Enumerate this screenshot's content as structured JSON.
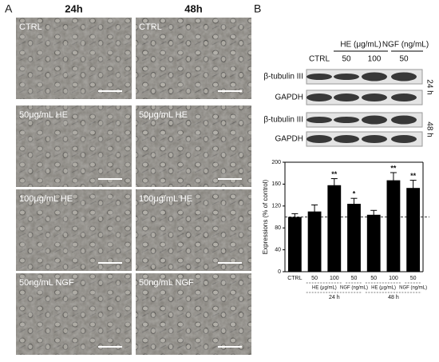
{
  "panel_a": {
    "label": "A",
    "columns": [
      "24h",
      "48h"
    ],
    "rows": [
      "CTRL",
      "50μg/mL HE",
      "100μg/mL HE",
      "50ng/mL NGF"
    ]
  },
  "panel_b": {
    "label": "B",
    "blot": {
      "treatments": [
        "HE (μg/mL)",
        "NGF (ng/mL)"
      ],
      "lanes": [
        "CTRL",
        "50",
        "100",
        "50"
      ],
      "proteins": [
        "β-tubulin III",
        "GAPDH",
        "β-tubulin III",
        "GAPDH"
      ],
      "times": [
        "24 h",
        "48 h"
      ]
    }
  },
  "chart_data": {
    "type": "bar",
    "ylabel": "Expressions (% of control)",
    "categories": [
      "CTRL",
      "50",
      "100",
      "50",
      "50",
      "100",
      "50"
    ],
    "values": [
      100,
      110,
      158,
      124,
      104,
      167,
      153
    ],
    "errors": [
      6,
      12,
      12,
      10,
      8,
      14,
      14
    ],
    "significance": [
      null,
      null,
      "**",
      "*",
      null,
      "**",
      "**"
    ],
    "groups": [
      "HE (μg/mL)",
      "NGF (ng/mL)",
      "HE (μg/mL)",
      "NGF (ng/mL)"
    ],
    "times": [
      "24 h",
      "48 h"
    ],
    "reference_line": 100,
    "color": "#000000",
    "ylim": [
      0,
      200
    ],
    "yticks": [
      0,
      40,
      80,
      120,
      160,
      200
    ]
  }
}
